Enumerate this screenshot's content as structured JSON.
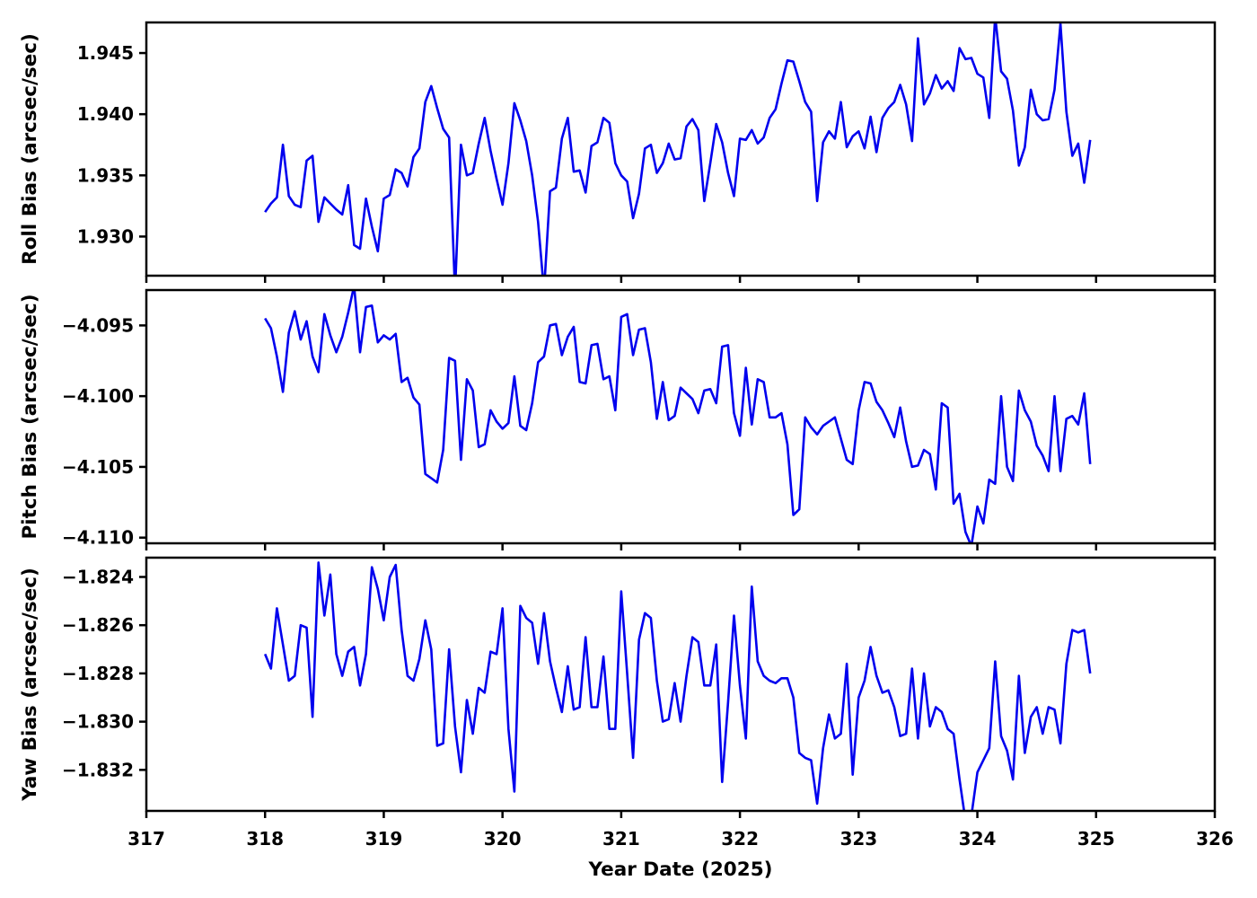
{
  "figure": {
    "background": "#ffffff",
    "axis_color": "#000000",
    "line_color": "#0000ee"
  },
  "chart_data": {
    "type": "line",
    "layout": "3 stacked subplots sharing x axis, no grid, no legend",
    "xlabel": "Year Date (2025)",
    "xlim": [
      317,
      326
    ],
    "x_ticks": [
      317,
      318,
      319,
      320,
      321,
      322,
      323,
      324,
      325,
      326
    ],
    "x_tick_labels": [
      "317",
      "318",
      "319",
      "320",
      "321",
      "322",
      "323",
      "324",
      "325",
      "326"
    ],
    "x": [
      318.0,
      318.05,
      318.1,
      318.15,
      318.2,
      318.25,
      318.3,
      318.35,
      318.4,
      318.45,
      318.5,
      318.55,
      318.6,
      318.65,
      318.7,
      318.75,
      318.8,
      318.85,
      318.9,
      318.95,
      319.0,
      319.05,
      319.1,
      319.15,
      319.2,
      319.25,
      319.3,
      319.35,
      319.4,
      319.45,
      319.5,
      319.55,
      319.6,
      319.65,
      319.7,
      319.75,
      319.8,
      319.85,
      319.9,
      319.95,
      320.0,
      320.05,
      320.1,
      320.15,
      320.2,
      320.25,
      320.3,
      320.35,
      320.4,
      320.45,
      320.5,
      320.55,
      320.6,
      320.65,
      320.7,
      320.75,
      320.8,
      320.85,
      320.9,
      320.95,
      321.0,
      321.05,
      321.1,
      321.15,
      321.2,
      321.25,
      321.3,
      321.35,
      321.4,
      321.45,
      321.5,
      321.55,
      321.6,
      321.65,
      321.7,
      321.75,
      321.8,
      321.85,
      321.9,
      321.95,
      322.0,
      322.05,
      322.1,
      322.15,
      322.2,
      322.25,
      322.3,
      322.35,
      322.4,
      322.45,
      322.5,
      322.55,
      322.6,
      322.65,
      322.7,
      322.75,
      322.8,
      322.85,
      322.9,
      322.95,
      323.0,
      323.05,
      323.1,
      323.15,
      323.2,
      323.25,
      323.3,
      323.35,
      323.4,
      323.45,
      323.5,
      323.55,
      323.6,
      323.65,
      323.7,
      323.75,
      323.8,
      323.85,
      323.9,
      323.95,
      324.0,
      324.05,
      324.1,
      324.15,
      324.2,
      324.25,
      324.3,
      324.35,
      324.4,
      324.45,
      324.5,
      324.55,
      324.6,
      324.65,
      324.7,
      324.75,
      324.8,
      324.85,
      324.9,
      324.95
    ],
    "series": [
      {
        "name": "roll-bias",
        "ylabel": "Roll Bias (arcsec/sec)",
        "color": "#0000ee",
        "ylim": [
          1.9268,
          1.9475
        ],
        "y_ticks": [
          1.93,
          1.935,
          1.94,
          1.945
        ],
        "y_tick_labels": [
          "1.930",
          "1.935",
          "1.940",
          "1.945"
        ],
        "values": [
          1.932,
          1.9327,
          1.9332,
          1.9375,
          1.9333,
          1.9326,
          1.9324,
          1.9362,
          1.9366,
          1.9312,
          1.9332,
          1.9327,
          1.9322,
          1.9318,
          1.9342,
          1.9293,
          1.929,
          1.9331,
          1.9308,
          1.9288,
          1.9331,
          1.9334,
          1.9355,
          1.9352,
          1.9341,
          1.9365,
          1.9372,
          1.941,
          1.9423,
          1.9405,
          1.9388,
          1.9381,
          1.9255,
          1.9375,
          1.935,
          1.9352,
          1.9376,
          1.9397,
          1.937,
          1.9347,
          1.9326,
          1.936,
          1.9409,
          1.9395,
          1.9378,
          1.935,
          1.9312,
          1.9255,
          1.9337,
          1.934,
          1.938,
          1.9397,
          1.9353,
          1.9354,
          1.9336,
          1.9374,
          1.9377,
          1.9397,
          1.9393,
          1.936,
          1.935,
          1.9345,
          1.9315,
          1.9335,
          1.9372,
          1.9375,
          1.9352,
          1.936,
          1.9376,
          1.9363,
          1.9364,
          1.939,
          1.9396,
          1.9387,
          1.9329,
          1.936,
          1.9392,
          1.9377,
          1.9352,
          1.9333,
          1.938,
          1.9379,
          1.9387,
          1.9376,
          1.9381,
          1.9397,
          1.9404,
          1.9425,
          1.9444,
          1.9443,
          1.9427,
          1.941,
          1.9402,
          1.9329,
          1.9377,
          1.9386,
          1.938,
          1.941,
          1.9373,
          1.9382,
          1.9386,
          1.9372,
          1.9398,
          1.9369,
          1.9397,
          1.9405,
          1.941,
          1.9424,
          1.9408,
          1.9378,
          1.9462,
          1.9408,
          1.9417,
          1.9432,
          1.9421,
          1.9427,
          1.9419,
          1.9454,
          1.9445,
          1.9446,
          1.9433,
          1.943,
          1.9397,
          1.948,
          1.9435,
          1.9429,
          1.9403,
          1.9358,
          1.9373,
          1.942,
          1.94,
          1.9395,
          1.9396,
          1.942,
          1.9474,
          1.9402,
          1.9366,
          1.9376,
          1.9344,
          1.9379
        ]
      },
      {
        "name": "pitch-bias",
        "ylabel": "Pitch Bias (arcsec/sec)",
        "color": "#0000ee",
        "ylim": [
          -4.1104,
          -4.0925
        ],
        "y_ticks": [
          -4.11,
          -4.105,
          -4.1,
          -4.095
        ],
        "y_tick_labels": [
          "−4.110",
          "−4.105",
          "−4.100",
          "−4.095"
        ],
        "values": [
          -4.0945,
          -4.0952,
          -4.0972,
          -4.0997,
          -4.0955,
          -4.094,
          -4.096,
          -4.0947,
          -4.0972,
          -4.0983,
          -4.0942,
          -4.0957,
          -4.0969,
          -4.0958,
          -4.0941,
          -4.0922,
          -4.0969,
          -4.0937,
          -4.0936,
          -4.0962,
          -4.0957,
          -4.096,
          -4.0956,
          -4.099,
          -4.0987,
          -4.1001,
          -4.1006,
          -4.1055,
          -4.1058,
          -4.1061,
          -4.1038,
          -4.0973,
          -4.0975,
          -4.1045,
          -4.0988,
          -4.0996,
          -4.1036,
          -4.1034,
          -4.101,
          -4.1018,
          -4.1023,
          -4.1019,
          -4.0986,
          -4.1021,
          -4.1024,
          -4.1005,
          -4.0976,
          -4.0972,
          -4.095,
          -4.0949,
          -4.0971,
          -4.0958,
          -4.0951,
          -4.099,
          -4.0991,
          -4.0964,
          -4.0963,
          -4.0988,
          -4.0986,
          -4.101,
          -4.0944,
          -4.0942,
          -4.0971,
          -4.0953,
          -4.0952,
          -4.0976,
          -4.1016,
          -4.099,
          -4.1017,
          -4.1014,
          -4.0994,
          -4.0998,
          -4.1002,
          -4.1012,
          -4.0996,
          -4.0995,
          -4.1005,
          -4.0965,
          -4.0964,
          -4.1012,
          -4.1028,
          -4.098,
          -4.102,
          -4.0988,
          -4.099,
          -4.1015,
          -4.1015,
          -4.1012,
          -4.1034,
          -4.1084,
          -4.108,
          -4.1015,
          -4.1022,
          -4.1027,
          -4.1021,
          -4.1018,
          -4.1015,
          -4.103,
          -4.1045,
          -4.1048,
          -4.101,
          -4.099,
          -4.0991,
          -4.1004,
          -4.101,
          -4.1019,
          -4.1029,
          -4.1008,
          -4.1032,
          -4.105,
          -4.1049,
          -4.1038,
          -4.1041,
          -4.1066,
          -4.1005,
          -4.1008,
          -4.1076,
          -4.1069,
          -4.1096,
          -4.1106,
          -4.1078,
          -4.109,
          -4.1059,
          -4.1062,
          -4.1,
          -4.105,
          -4.106,
          -4.0996,
          -4.101,
          -4.1018,
          -4.1035,
          -4.1042,
          -4.1053,
          -4.1,
          -4.1053,
          -4.1016,
          -4.1014,
          -4.102,
          -4.0998,
          -4.1048
        ]
      },
      {
        "name": "yaw-bias",
        "ylabel": "Yaw Bias (arcsec/sec)",
        "color": "#0000ee",
        "ylim": [
          -1.8337,
          -1.8232
        ],
        "y_ticks": [
          -1.832,
          -1.83,
          -1.828,
          -1.826,
          -1.824
        ],
        "y_tick_labels": [
          "−1.832",
          "−1.830",
          "−1.828",
          "−1.826",
          "−1.824"
        ],
        "values": [
          -1.8272,
          -1.8278,
          -1.8253,
          -1.8268,
          -1.8283,
          -1.8281,
          -1.826,
          -1.8261,
          -1.8298,
          -1.8234,
          -1.8256,
          -1.8239,
          -1.8272,
          -1.8281,
          -1.8271,
          -1.8269,
          -1.8285,
          -1.8272,
          -1.8236,
          -1.8245,
          -1.8258,
          -1.824,
          -1.8235,
          -1.8262,
          -1.8281,
          -1.8283,
          -1.8274,
          -1.8258,
          -1.827,
          -1.831,
          -1.8309,
          -1.827,
          -1.8302,
          -1.8321,
          -1.8291,
          -1.8305,
          -1.8286,
          -1.8288,
          -1.8271,
          -1.8272,
          -1.8253,
          -1.8303,
          -1.8329,
          -1.8252,
          -1.8257,
          -1.8259,
          -1.8276,
          -1.8255,
          -1.8275,
          -1.8286,
          -1.8296,
          -1.8277,
          -1.8295,
          -1.8294,
          -1.8265,
          -1.8294,
          -1.8294,
          -1.8273,
          -1.8303,
          -1.8303,
          -1.8246,
          -1.828,
          -1.8315,
          -1.8266,
          -1.8255,
          -1.8257,
          -1.8283,
          -1.83,
          -1.8299,
          -1.8284,
          -1.83,
          -1.8281,
          -1.8265,
          -1.8267,
          -1.8285,
          -1.8285,
          -1.8268,
          -1.8325,
          -1.8292,
          -1.8256,
          -1.8285,
          -1.8307,
          -1.8244,
          -1.8275,
          -1.8281,
          -1.8283,
          -1.8284,
          -1.8282,
          -1.8282,
          -1.829,
          -1.8313,
          -1.8315,
          -1.8316,
          -1.8334,
          -1.8311,
          -1.8297,
          -1.8307,
          -1.8305,
          -1.8276,
          -1.8322,
          -1.829,
          -1.8283,
          -1.8269,
          -1.8281,
          -1.8288,
          -1.8287,
          -1.8294,
          -1.8306,
          -1.8305,
          -1.8278,
          -1.8307,
          -1.828,
          -1.8302,
          -1.8294,
          -1.8296,
          -1.8303,
          -1.8305,
          -1.8324,
          -1.8341,
          -1.8339,
          -1.8321,
          -1.8316,
          -1.8311,
          -1.8275,
          -1.8306,
          -1.8312,
          -1.8324,
          -1.8281,
          -1.8313,
          -1.8298,
          -1.8294,
          -1.8305,
          -1.8294,
          -1.8295,
          -1.8309,
          -1.8276,
          -1.8262,
          -1.8263,
          -1.8262,
          -1.828
        ]
      }
    ]
  }
}
